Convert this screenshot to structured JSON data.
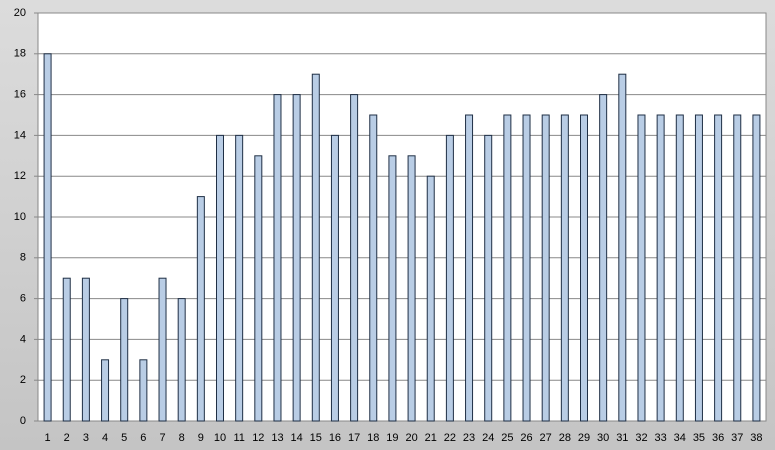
{
  "chart_data": {
    "type": "bar",
    "categories": [
      "1",
      "2",
      "3",
      "4",
      "5",
      "6",
      "7",
      "8",
      "9",
      "10",
      "11",
      "12",
      "13",
      "14",
      "15",
      "16",
      "17",
      "18",
      "19",
      "20",
      "21",
      "22",
      "23",
      "24",
      "25",
      "26",
      "27",
      "28",
      "29",
      "30",
      "31",
      "32",
      "33",
      "34",
      "35",
      "36",
      "37",
      "38"
    ],
    "values": [
      18,
      7,
      7,
      3,
      6,
      3,
      7,
      6,
      11,
      14,
      14,
      13,
      16,
      16,
      17,
      14,
      16,
      15,
      13,
      13,
      12,
      14,
      15,
      14,
      15,
      15,
      15,
      15,
      15,
      16,
      17,
      15,
      15,
      15,
      15,
      15,
      15,
      15
    ],
    "color": "#b9cde5",
    "ylim": [
      0,
      20
    ],
    "yticks": [
      0,
      2,
      4,
      6,
      8,
      10,
      12,
      14,
      16,
      18,
      20
    ],
    "grid": true
  }
}
